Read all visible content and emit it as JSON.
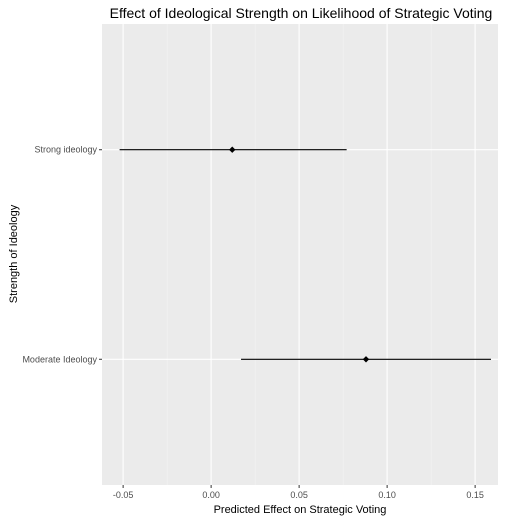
{
  "chart_data": {
    "type": "forest",
    "title": "Effect of Ideological Strength on Likelihood of Strategic Voting",
    "xlabel": "Predicted Effect on Strategic Voting",
    "ylabel": "Strength of Ideology",
    "xlim": [
      -0.062,
      0.163
    ],
    "xticks": [
      -0.05,
      0.0,
      0.05,
      0.1,
      0.15
    ],
    "xtick_labels": [
      "-0.05",
      "0.00",
      "0.05",
      "0.10",
      "0.15"
    ],
    "categories": [
      "Strong ideology",
      "Moderate Ideology"
    ],
    "estimates": [
      {
        "label": "Strong ideology",
        "value": 0.012,
        "lower": -0.052,
        "upper": 0.077
      },
      {
        "label": "Moderate Ideology",
        "value": 0.088,
        "lower": 0.017,
        "upper": 0.159
      }
    ],
    "grid": true,
    "colors": {
      "panel": "#ebebeb",
      "grid_major": "#ffffff",
      "grid_minor": "#f5f5f5",
      "point": "#000000",
      "tick_text": "#4d4d4d"
    }
  }
}
